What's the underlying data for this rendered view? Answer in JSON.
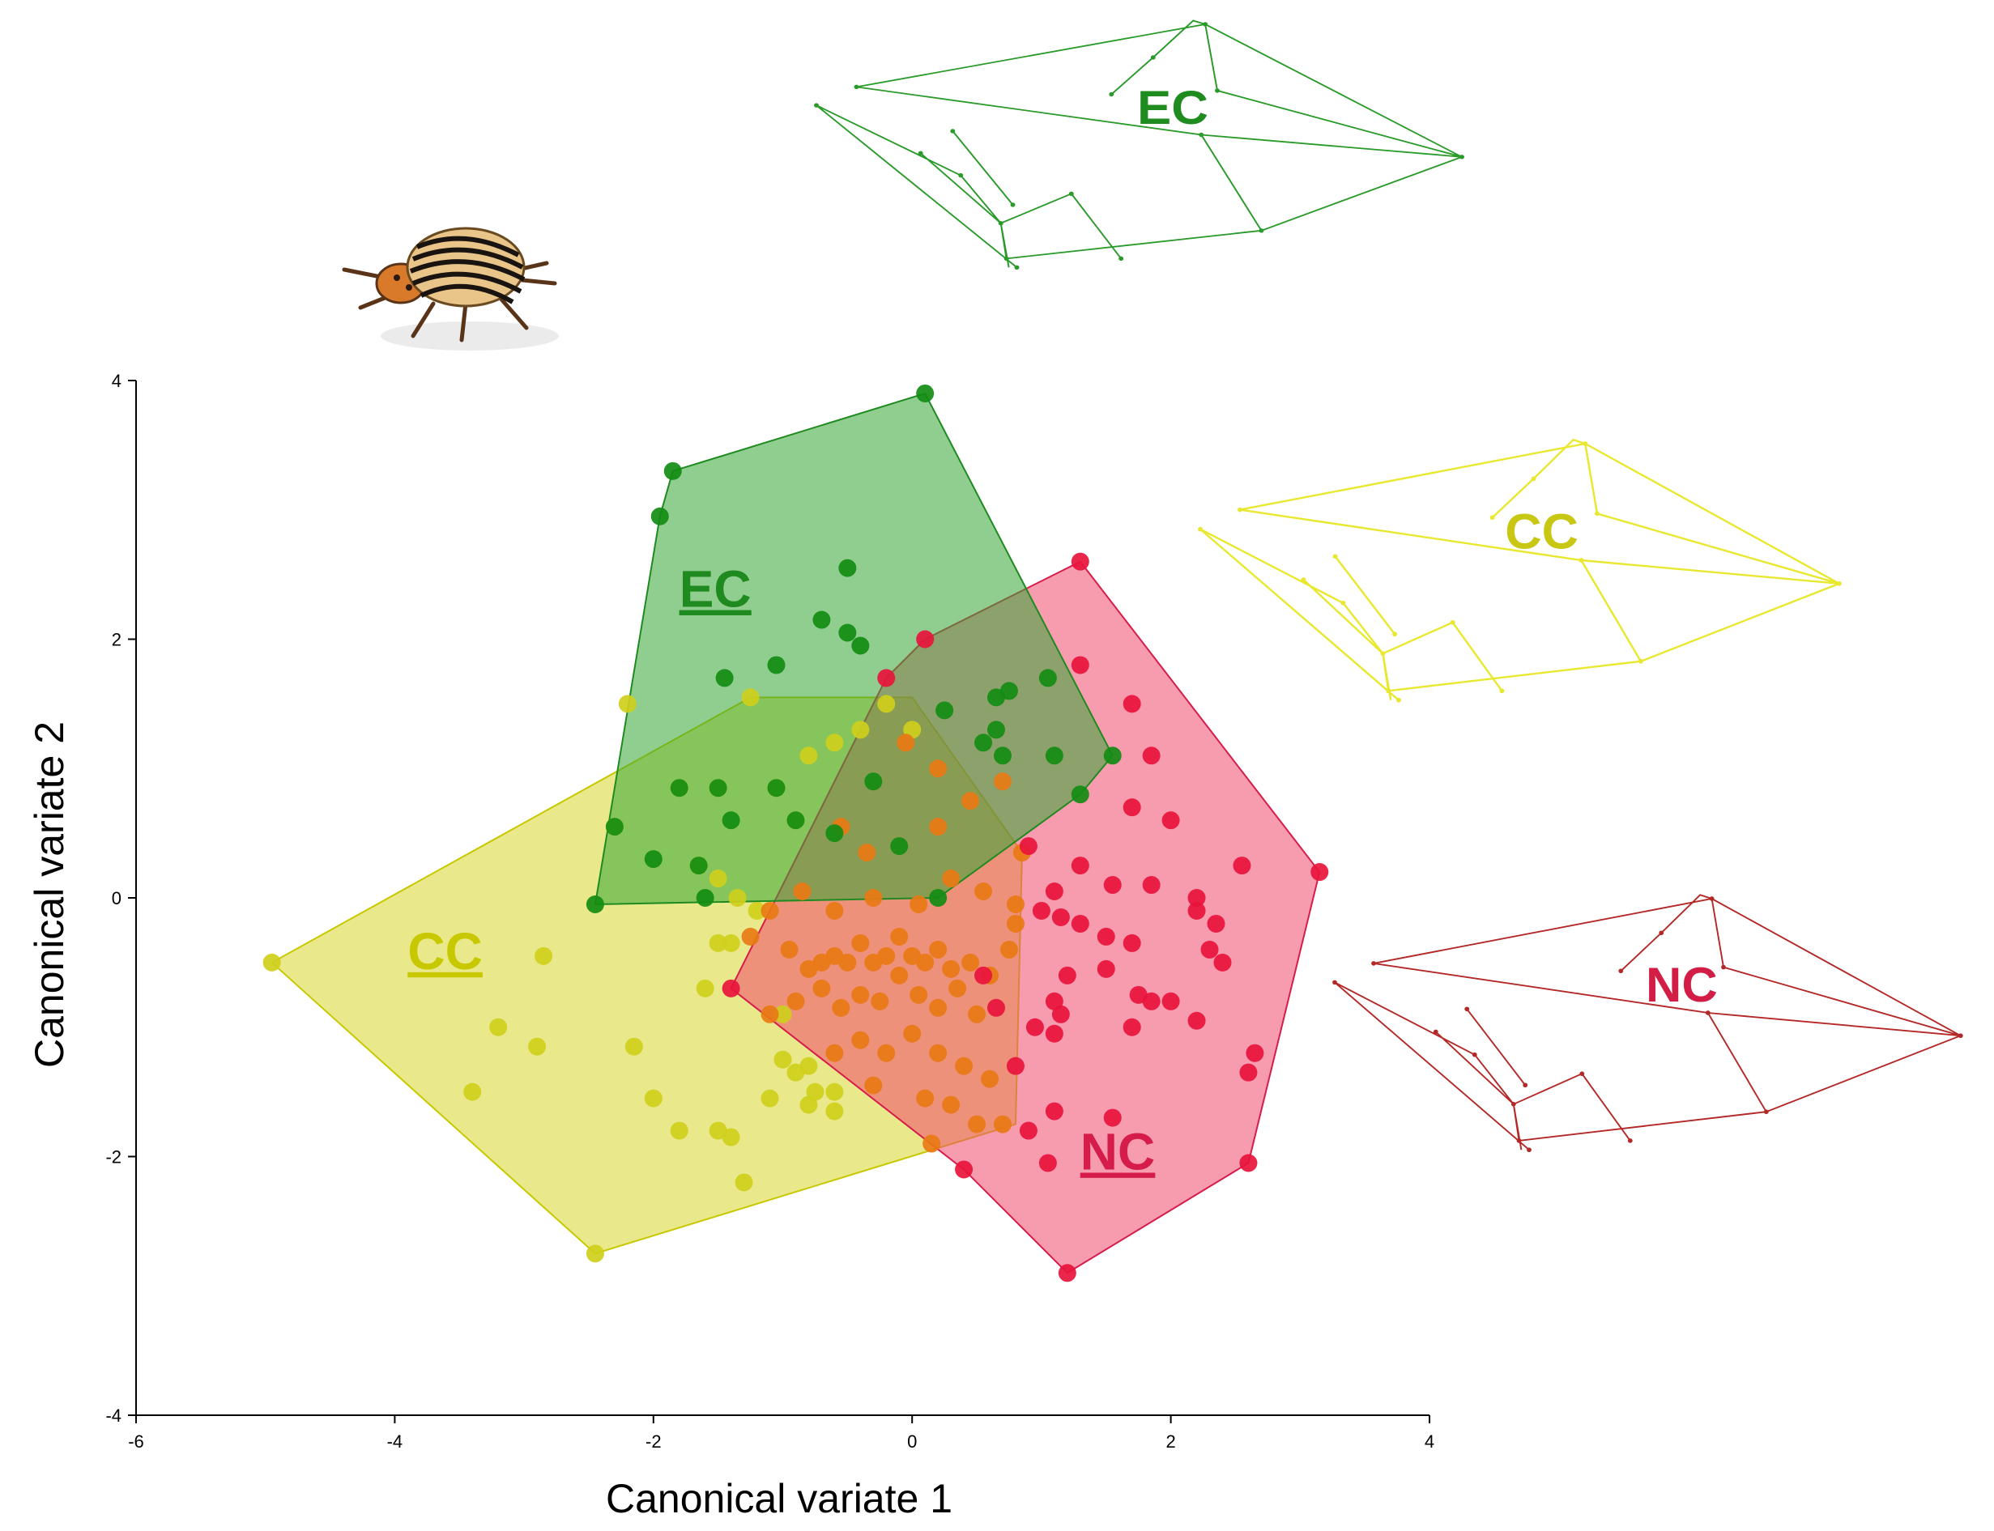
{
  "chart_data": {
    "type": "scatter",
    "subtype": "canonical variate scatter with convex hulls",
    "xlabel": "Canonical variate 1",
    "ylabel": "Canonical variate 2",
    "xlim": [
      -6,
      4
    ],
    "ylim": [
      -4,
      4
    ],
    "xticks": [
      "-6",
      "-4",
      "-2",
      "0",
      "2",
      "4"
    ],
    "yticks": [
      "4",
      "2",
      "0",
      "-2",
      "-4"
    ],
    "xtick_values": [
      -6,
      -4,
      -2,
      0,
      2,
      4
    ],
    "ytick_values": [
      4,
      2,
      0,
      -2,
      -4
    ],
    "series": [
      {
        "name": "CC",
        "label": "CC",
        "color": "#c8c800",
        "fill": "#d7d72e",
        "point_color": "#cfcf1c",
        "label_pos": [
          -3.9,
          -0.55
        ],
        "hull": [
          [
            -4.95,
            -0.5
          ],
          [
            -1.25,
            1.55
          ],
          [
            0.0,
            1.55
          ],
          [
            0.85,
            0.35
          ],
          [
            0.8,
            -1.75
          ],
          [
            -2.45,
            -2.75
          ]
        ],
        "points": [
          [
            -4.95,
            -0.5
          ],
          [
            -2.45,
            -2.75
          ],
          [
            -2.2,
            1.5
          ],
          [
            -1.25,
            1.55
          ],
          [
            -3.4,
            -1.5
          ],
          [
            -3.2,
            -1.0
          ],
          [
            -2.9,
            -1.15
          ],
          [
            -2.85,
            -0.45
          ],
          [
            -2.15,
            -1.15
          ],
          [
            -2.0,
            -1.55
          ],
          [
            -1.8,
            -1.8
          ],
          [
            -1.5,
            -1.8
          ],
          [
            -1.4,
            -1.85
          ],
          [
            -1.3,
            -2.2
          ],
          [
            -1.6,
            -0.7
          ],
          [
            -1.5,
            -0.35
          ],
          [
            -1.4,
            -0.35
          ],
          [
            -1.2,
            -0.1
          ],
          [
            -1.5,
            0.15
          ],
          [
            -1.35,
            0.0
          ],
          [
            -2.3,
            0.55
          ],
          [
            -1.8,
            0.85
          ],
          [
            -1.5,
            0.85
          ],
          [
            -1.05,
            0.85
          ],
          [
            -0.9,
            0.6
          ],
          [
            -1.65,
            0.25
          ],
          [
            -1.1,
            -1.55
          ],
          [
            -1.0,
            -1.25
          ],
          [
            -0.9,
            -1.35
          ],
          [
            -0.8,
            -1.3
          ],
          [
            -0.75,
            -1.5
          ],
          [
            -0.8,
            -1.6
          ],
          [
            -0.6,
            -1.5
          ],
          [
            -0.6,
            -1.65
          ],
          [
            -1.0,
            -0.9
          ],
          [
            -0.8,
            1.1
          ],
          [
            -0.6,
            1.2
          ],
          [
            -0.4,
            1.3
          ],
          [
            0.0,
            1.3
          ],
          [
            -0.2,
            1.5
          ]
        ]
      },
      {
        "name": "EC",
        "label": "EC",
        "color": "#1f8a1f",
        "fill": "#35a535",
        "point_color": "#128c12",
        "label_pos": [
          -1.8,
          2.25
        ],
        "hull": [
          [
            -2.45,
            -0.05
          ],
          [
            -1.95,
            2.95
          ],
          [
            -1.85,
            3.3
          ],
          [
            0.1,
            3.9
          ],
          [
            1.55,
            1.1
          ],
          [
            1.3,
            0.8
          ],
          [
            0.2,
            0.0
          ]
        ],
        "points": [
          [
            -2.45,
            -0.05
          ],
          [
            -1.95,
            2.95
          ],
          [
            -1.85,
            3.3
          ],
          [
            0.1,
            3.9
          ],
          [
            -0.5,
            2.55
          ],
          [
            -0.7,
            2.15
          ],
          [
            -0.5,
            2.05
          ],
          [
            -0.4,
            1.95
          ],
          [
            -1.45,
            1.7
          ],
          [
            -1.05,
            1.8
          ],
          [
            1.55,
            1.1
          ],
          [
            1.3,
            0.8
          ],
          [
            -2.3,
            0.55
          ],
          [
            -1.8,
            0.85
          ],
          [
            -1.5,
            0.85
          ],
          [
            -1.05,
            0.85
          ],
          [
            -0.9,
            0.6
          ],
          [
            -1.65,
            0.25
          ],
          [
            -1.4,
            0.6
          ],
          [
            -2.0,
            0.3
          ],
          [
            -1.6,
            0.0
          ],
          [
            -0.6,
            0.5
          ],
          [
            -0.3,
            0.9
          ],
          [
            -0.1,
            0.4
          ],
          [
            0.25,
            1.45
          ],
          [
            0.55,
            1.2
          ],
          [
            0.65,
            1.55
          ],
          [
            0.75,
            1.6
          ],
          [
            0.65,
            1.3
          ],
          [
            0.7,
            1.1
          ],
          [
            1.05,
            1.7
          ],
          [
            1.1,
            1.1
          ],
          [
            0.2,
            0.0
          ]
        ]
      },
      {
        "name": "NC",
        "label": "NC",
        "color": "#d61c4a",
        "fill": "#f0486e",
        "point_color": "#e8143c",
        "label_pos": [
          1.3,
          -2.1
        ],
        "hull": [
          [
            -1.4,
            -0.7
          ],
          [
            -0.2,
            1.7
          ],
          [
            0.1,
            2.0
          ],
          [
            1.3,
            2.6
          ],
          [
            3.15,
            0.2
          ],
          [
            2.6,
            -2.05
          ],
          [
            1.2,
            -2.9
          ],
          [
            0.4,
            -2.1
          ]
        ],
        "points": [
          [
            -1.4,
            -0.7
          ],
          [
            0.1,
            2.0
          ],
          [
            -0.2,
            1.7
          ],
          [
            1.3,
            2.6
          ],
          [
            3.15,
            0.2
          ],
          [
            2.6,
            -2.05
          ],
          [
            1.2,
            -2.9
          ],
          [
            0.4,
            -2.1
          ],
          [
            1.3,
            1.8
          ],
          [
            1.7,
            1.5
          ],
          [
            1.85,
            1.1
          ],
          [
            1.7,
            0.7
          ],
          [
            2.0,
            0.6
          ],
          [
            0.9,
            0.4
          ],
          [
            1.3,
            0.25
          ],
          [
            1.55,
            0.1
          ],
          [
            1.85,
            0.1
          ],
          [
            2.2,
            0.0
          ],
          [
            2.55,
            0.25
          ],
          [
            1.1,
            0.05
          ],
          [
            1.0,
            -0.1
          ],
          [
            1.15,
            -0.15
          ],
          [
            1.3,
            -0.2
          ],
          [
            1.5,
            -0.3
          ],
          [
            1.7,
            -0.35
          ],
          [
            2.2,
            -0.1
          ],
          [
            2.35,
            -0.2
          ],
          [
            2.3,
            -0.4
          ],
          [
            2.4,
            -0.5
          ],
          [
            1.2,
            -0.6
          ],
          [
            1.5,
            -0.55
          ],
          [
            1.75,
            -0.75
          ],
          [
            1.85,
            -0.8
          ],
          [
            2.0,
            -0.8
          ],
          [
            1.1,
            -0.8
          ],
          [
            1.15,
            -0.9
          ],
          [
            0.95,
            -1.0
          ],
          [
            1.1,
            -1.05
          ],
          [
            1.7,
            -1.0
          ],
          [
            2.2,
            -0.95
          ],
          [
            2.65,
            -1.2
          ],
          [
            2.6,
            -1.35
          ],
          [
            1.1,
            -1.65
          ],
          [
            1.55,
            -1.7
          ],
          [
            0.9,
            -1.8
          ],
          [
            1.05,
            -2.05
          ],
          [
            0.55,
            -0.6
          ],
          [
            0.65,
            -0.85
          ],
          [
            0.8,
            -1.3
          ]
        ]
      },
      {
        "name": "overlap",
        "label": "",
        "color": "#e07a1c",
        "fill": "#e07a1c",
        "point_color": "#e87a14",
        "label_pos": null,
        "hull": [],
        "points": [
          [
            -0.95,
            -0.4
          ],
          [
            -0.8,
            -0.55
          ],
          [
            -0.7,
            -0.5
          ],
          [
            -0.6,
            -0.45
          ],
          [
            -0.5,
            -0.5
          ],
          [
            -0.4,
            -0.35
          ],
          [
            -0.3,
            -0.5
          ],
          [
            -0.2,
            -0.45
          ],
          [
            -0.1,
            -0.3
          ],
          [
            0.0,
            -0.45
          ],
          [
            0.1,
            -0.5
          ],
          [
            0.2,
            -0.4
          ],
          [
            0.3,
            -0.55
          ],
          [
            0.45,
            -0.5
          ],
          [
            0.6,
            -0.6
          ],
          [
            0.75,
            -0.4
          ],
          [
            -1.1,
            -0.9
          ],
          [
            -0.9,
            -0.8
          ],
          [
            -0.7,
            -0.7
          ],
          [
            -0.55,
            -0.85
          ],
          [
            -0.4,
            -0.75
          ],
          [
            -0.25,
            -0.8
          ],
          [
            -0.1,
            -0.6
          ],
          [
            0.05,
            -0.75
          ],
          [
            0.2,
            -0.85
          ],
          [
            0.35,
            -0.7
          ],
          [
            0.5,
            -0.9
          ],
          [
            -0.6,
            -1.2
          ],
          [
            -0.4,
            -1.1
          ],
          [
            -0.2,
            -1.2
          ],
          [
            0.0,
            -1.05
          ],
          [
            0.2,
            -1.2
          ],
          [
            0.4,
            -1.3
          ],
          [
            0.6,
            -1.4
          ],
          [
            -0.3,
            -1.45
          ],
          [
            0.1,
            -1.55
          ],
          [
            0.3,
            -1.6
          ],
          [
            0.5,
            -1.75
          ],
          [
            0.15,
            -1.9
          ],
          [
            0.7,
            -1.75
          ],
          [
            -1.25,
            -0.3
          ],
          [
            -1.1,
            -0.1
          ],
          [
            -0.85,
            0.05
          ],
          [
            -0.6,
            -0.1
          ],
          [
            -0.3,
            0.0
          ],
          [
            0.05,
            -0.05
          ],
          [
            0.3,
            0.15
          ],
          [
            0.55,
            0.05
          ],
          [
            0.8,
            -0.05
          ],
          [
            0.85,
            0.35
          ],
          [
            -0.35,
            0.35
          ],
          [
            0.2,
            0.55
          ],
          [
            0.45,
            0.75
          ],
          [
            0.7,
            0.9
          ],
          [
            0.2,
            1.0
          ],
          [
            -0.05,
            1.2
          ],
          [
            -0.55,
            0.55
          ],
          [
            0.8,
            -0.2
          ]
        ]
      }
    ],
    "wing_diagrams": [
      {
        "label": "EC",
        "color": "#2a9a2a",
        "label_color": "#1e8c1e"
      },
      {
        "label": "CC",
        "color": "#e8e830",
        "label_color": "#c8c814"
      },
      {
        "label": "NC",
        "color": "#b42828",
        "label_color": "#d21e46"
      }
    ]
  }
}
